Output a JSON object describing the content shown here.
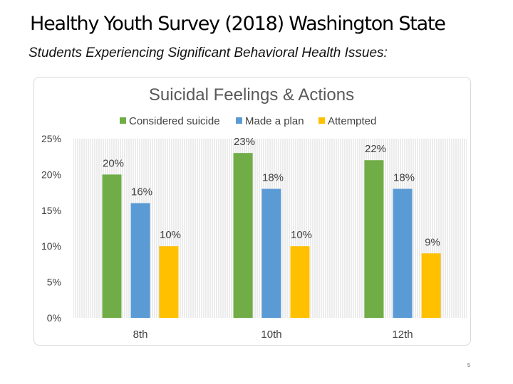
{
  "slide": {
    "title": "Healthy Youth Survey (2018) Washington State",
    "subtitle": "Students Experiencing Significant Behavioral Health Issues:",
    "page_number": "5"
  },
  "chart_data": {
    "type": "bar",
    "title": "Suicidal Feelings & Actions",
    "categories": [
      "8th",
      "10th",
      "12th"
    ],
    "series": [
      {
        "name": "Considered suicide",
        "color": "#70ad47",
        "values": [
          20,
          23,
          22
        ],
        "labels": [
          "20%",
          "23%",
          "22%"
        ]
      },
      {
        "name": "Made a plan",
        "color": "#5b9bd5",
        "values": [
          16,
          18,
          18
        ],
        "labels": [
          "16%",
          "18%",
          "18%"
        ]
      },
      {
        "name": "Attempted",
        "color": "#ffc000",
        "values": [
          10,
          10,
          9
        ],
        "labels": [
          "10%",
          "10%",
          "9%"
        ]
      }
    ],
    "y_ticks": [
      0,
      5,
      10,
      15,
      20,
      25
    ],
    "y_tick_labels": [
      "0%",
      "5%",
      "10%",
      "15%",
      "20%",
      "25%"
    ],
    "ylim": [
      0,
      25
    ],
    "grid": "vertical-hatch",
    "legend": "top",
    "xlabel": "",
    "ylabel": ""
  }
}
